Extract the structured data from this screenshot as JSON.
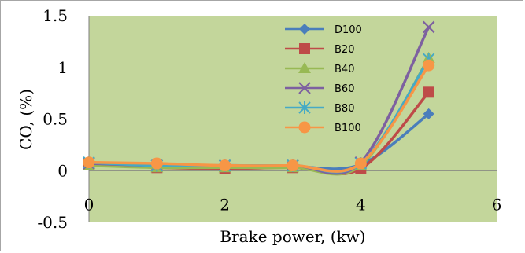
{
  "chart_data": {
    "type": "line",
    "title": "",
    "xlabel": "Brake power, (kw)",
    "ylabel": "CO, (%)",
    "xlim": [
      0,
      6
    ],
    "ylim": [
      -0.5,
      1.5
    ],
    "x_ticks": [
      "0",
      "2",
      "4",
      "6"
    ],
    "y_ticks": [
      "-0.5",
      "0",
      "0.5",
      "1",
      "1.5"
    ],
    "grid": false,
    "legend_position": "top-right",
    "plot_background": "#c3d69b",
    "x": [
      0,
      1,
      2,
      3,
      4,
      5
    ],
    "series": [
      {
        "name": "D100",
        "color": "#4a7ebb",
        "marker": "diamond",
        "values": [
          0.07,
          0.05,
          0.04,
          0.04,
          0.06,
          0.55
        ]
      },
      {
        "name": "B20",
        "color": "#be4b48",
        "marker": "square",
        "values": [
          0.06,
          0.03,
          0.02,
          0.03,
          0.02,
          0.76
        ]
      },
      {
        "name": "B40",
        "color": "#98b954",
        "marker": "triangle",
        "values": [
          0.05,
          0.03,
          0.03,
          0.03,
          0.05,
          1.09
        ]
      },
      {
        "name": "B60",
        "color": "#7d60a0",
        "marker": "x",
        "values": [
          0.07,
          0.05,
          0.05,
          0.05,
          0.08,
          1.39
        ]
      },
      {
        "name": "B80",
        "color": "#46aac5",
        "marker": "asterisk",
        "values": [
          0.08,
          0.05,
          0.05,
          0.05,
          0.07,
          1.08
        ]
      },
      {
        "name": "B100",
        "color": "#f79646",
        "marker": "circle",
        "values": [
          0.08,
          0.07,
          0.05,
          0.05,
          0.07,
          1.02
        ]
      }
    ]
  }
}
